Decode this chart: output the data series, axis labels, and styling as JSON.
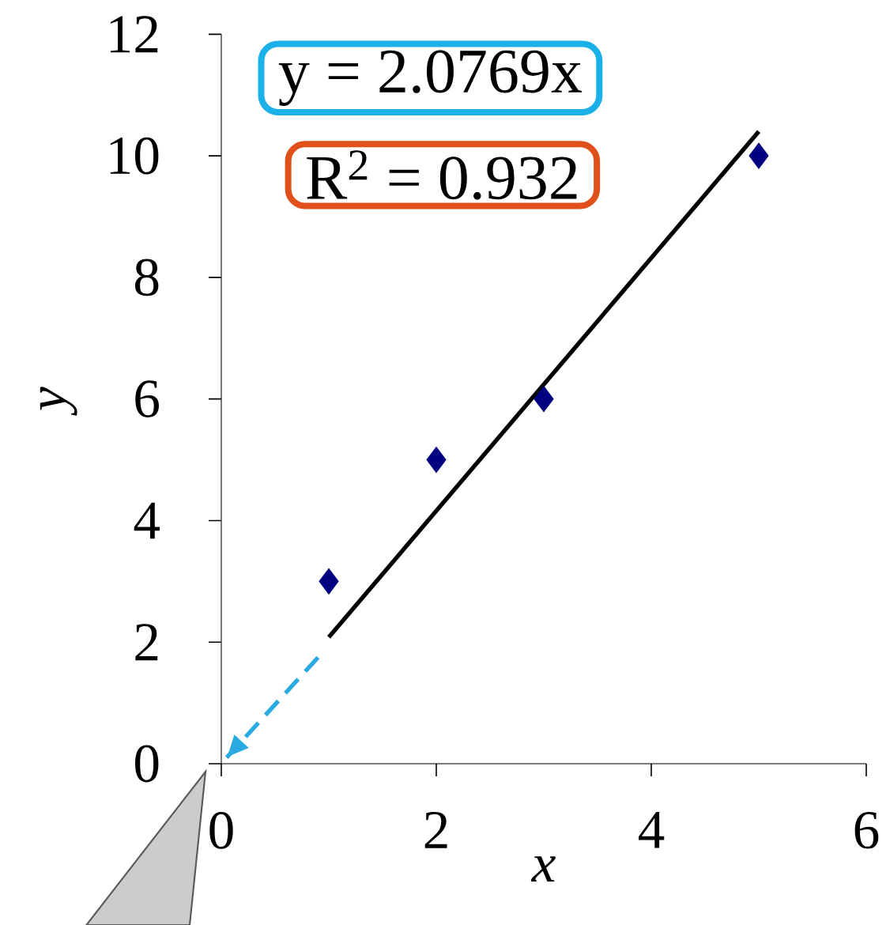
{
  "chart_data": {
    "type": "scatter",
    "xlabel": "x",
    "ylabel": "y",
    "xlim": [
      0,
      6
    ],
    "ylim": [
      0,
      12
    ],
    "xticks": [
      0,
      2,
      4,
      6
    ],
    "yticks": [
      0,
      2,
      4,
      6,
      8,
      10,
      12
    ],
    "annotations": [
      "y = 2.0769x",
      "R$^{2}$ = 0.932"
    ],
    "series": [
      {
        "x": [
          1,
          2,
          3,
          5
        ],
        "values": [
          3,
          5,
          6,
          10
        ],
        "color": "#000080",
        "marker": "diamond"
      },
      {
        "type": "line",
        "x": [
          1,
          5
        ],
        "values": [
          2.08,
          10.4
        ],
        "color": "#000000",
        "line_style": "solid"
      },
      {
        "type": "line",
        "x": [
          0.9,
          0.05
        ],
        "values": [
          1.75,
          0.1
        ],
        "color": "#29abe2",
        "line_style": "dashed"
      }
    ]
  }
}
